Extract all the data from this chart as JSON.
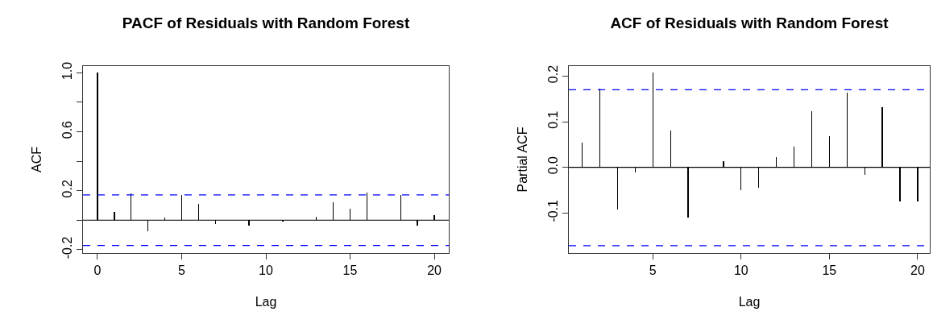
{
  "chart_data": [
    {
      "type": "bar",
      "title": "PACF of Residuals with Random Forest",
      "xlabel": "Lag",
      "ylabel": "ACF",
      "x": [
        0,
        1,
        2,
        3,
        4,
        5,
        6,
        7,
        8,
        9,
        10,
        11,
        12,
        13,
        14,
        15,
        16,
        17,
        18,
        19,
        20
      ],
      "color": "#000000",
      "values": [
        1.0,
        0.058,
        0.18,
        -0.073,
        0.016,
        0.17,
        0.108,
        -0.026,
        null,
        -0.038,
        0,
        -0.01,
        0,
        0.024,
        0.12,
        0.078,
        0.188,
        0,
        0.17,
        -0.038,
        0.036
      ],
      "xlim": [
        -0.86,
        20.86
      ],
      "ylim": [
        -0.223,
        1.046
      ],
      "xticks": [
        0,
        5,
        10,
        15,
        20
      ],
      "yticks": [
        {
          "value": -0.2,
          "label": "-0.2"
        },
        {
          "value": 0,
          "label": null
        },
        {
          "value": 0.2,
          "label": "0.2"
        },
        {
          "value": 0.4,
          "label": null
        },
        {
          "value": 0.6,
          "label": "0.6"
        },
        {
          "value": 0.8,
          "label": null
        },
        {
          "value": 1,
          "label": "1.0"
        }
      ],
      "ref_lines": [
        {
          "axis": "y",
          "value": 0,
          "color": "#000000",
          "line_style": "solid"
        },
        {
          "axis": "y",
          "value": 0.172,
          "color": "#0000ff",
          "line_style": "dashed"
        },
        {
          "axis": "y",
          "value": -0.172,
          "color": "#0000ff",
          "line_style": "dashed"
        }
      ]
    },
    {
      "type": "bar",
      "title": "ACF of Residuals with Random Forest",
      "xlabel": "Lag",
      "ylabel": "Partial ACF",
      "x": [
        1,
        2,
        3,
        4,
        5,
        6,
        7,
        8,
        9,
        10,
        11,
        12,
        13,
        14,
        15,
        16,
        17,
        18,
        19,
        20
      ],
      "color": "#000000",
      "values": [
        0.055,
        0.173,
        -0.093,
        -0.011,
        0.207,
        0.08,
        -0.111,
        0,
        0.014,
        -0.051,
        -0.045,
        0.022,
        0.045,
        0.123,
        0.069,
        0.164,
        -0.017,
        0.132,
        -0.075,
        -0.075
      ],
      "xlim": [
        0.24,
        20.69
      ],
      "ylim": [
        -0.188,
        0.222
      ],
      "xticks": [
        5,
        10,
        15,
        20
      ],
      "yticks": [
        {
          "value": -0.1,
          "label": "-0.1"
        },
        {
          "value": 0,
          "label": "0.0"
        },
        {
          "value": 0.1,
          "label": "0.1"
        },
        {
          "value": 0.2,
          "label": "0.2"
        }
      ],
      "ref_lines": [
        {
          "axis": "y",
          "value": 0,
          "color": "#000000",
          "line_style": "solid"
        },
        {
          "axis": "y",
          "value": 0.17,
          "color": "#0000ff",
          "line_style": "dashed"
        },
        {
          "axis": "y",
          "value": -0.172,
          "color": "#0000ff",
          "line_style": "dashed"
        }
      ]
    }
  ]
}
